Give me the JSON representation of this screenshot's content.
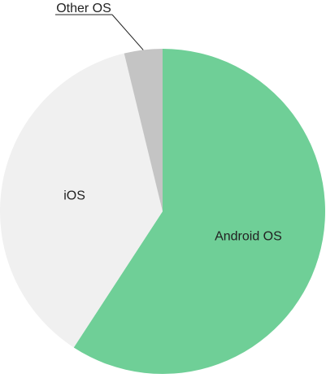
{
  "chart_data": {
    "type": "pie",
    "title": "",
    "categories": [
      "Android OS",
      "iOS",
      "Other OS"
    ],
    "values": [
      59.2,
      37.0,
      3.8
    ],
    "colors": [
      "#6fcf97",
      "#f0f0f0",
      "#c4c4c4"
    ],
    "label_placement": [
      "inside",
      "inside",
      "outside-callout"
    ],
    "legend": "none"
  }
}
